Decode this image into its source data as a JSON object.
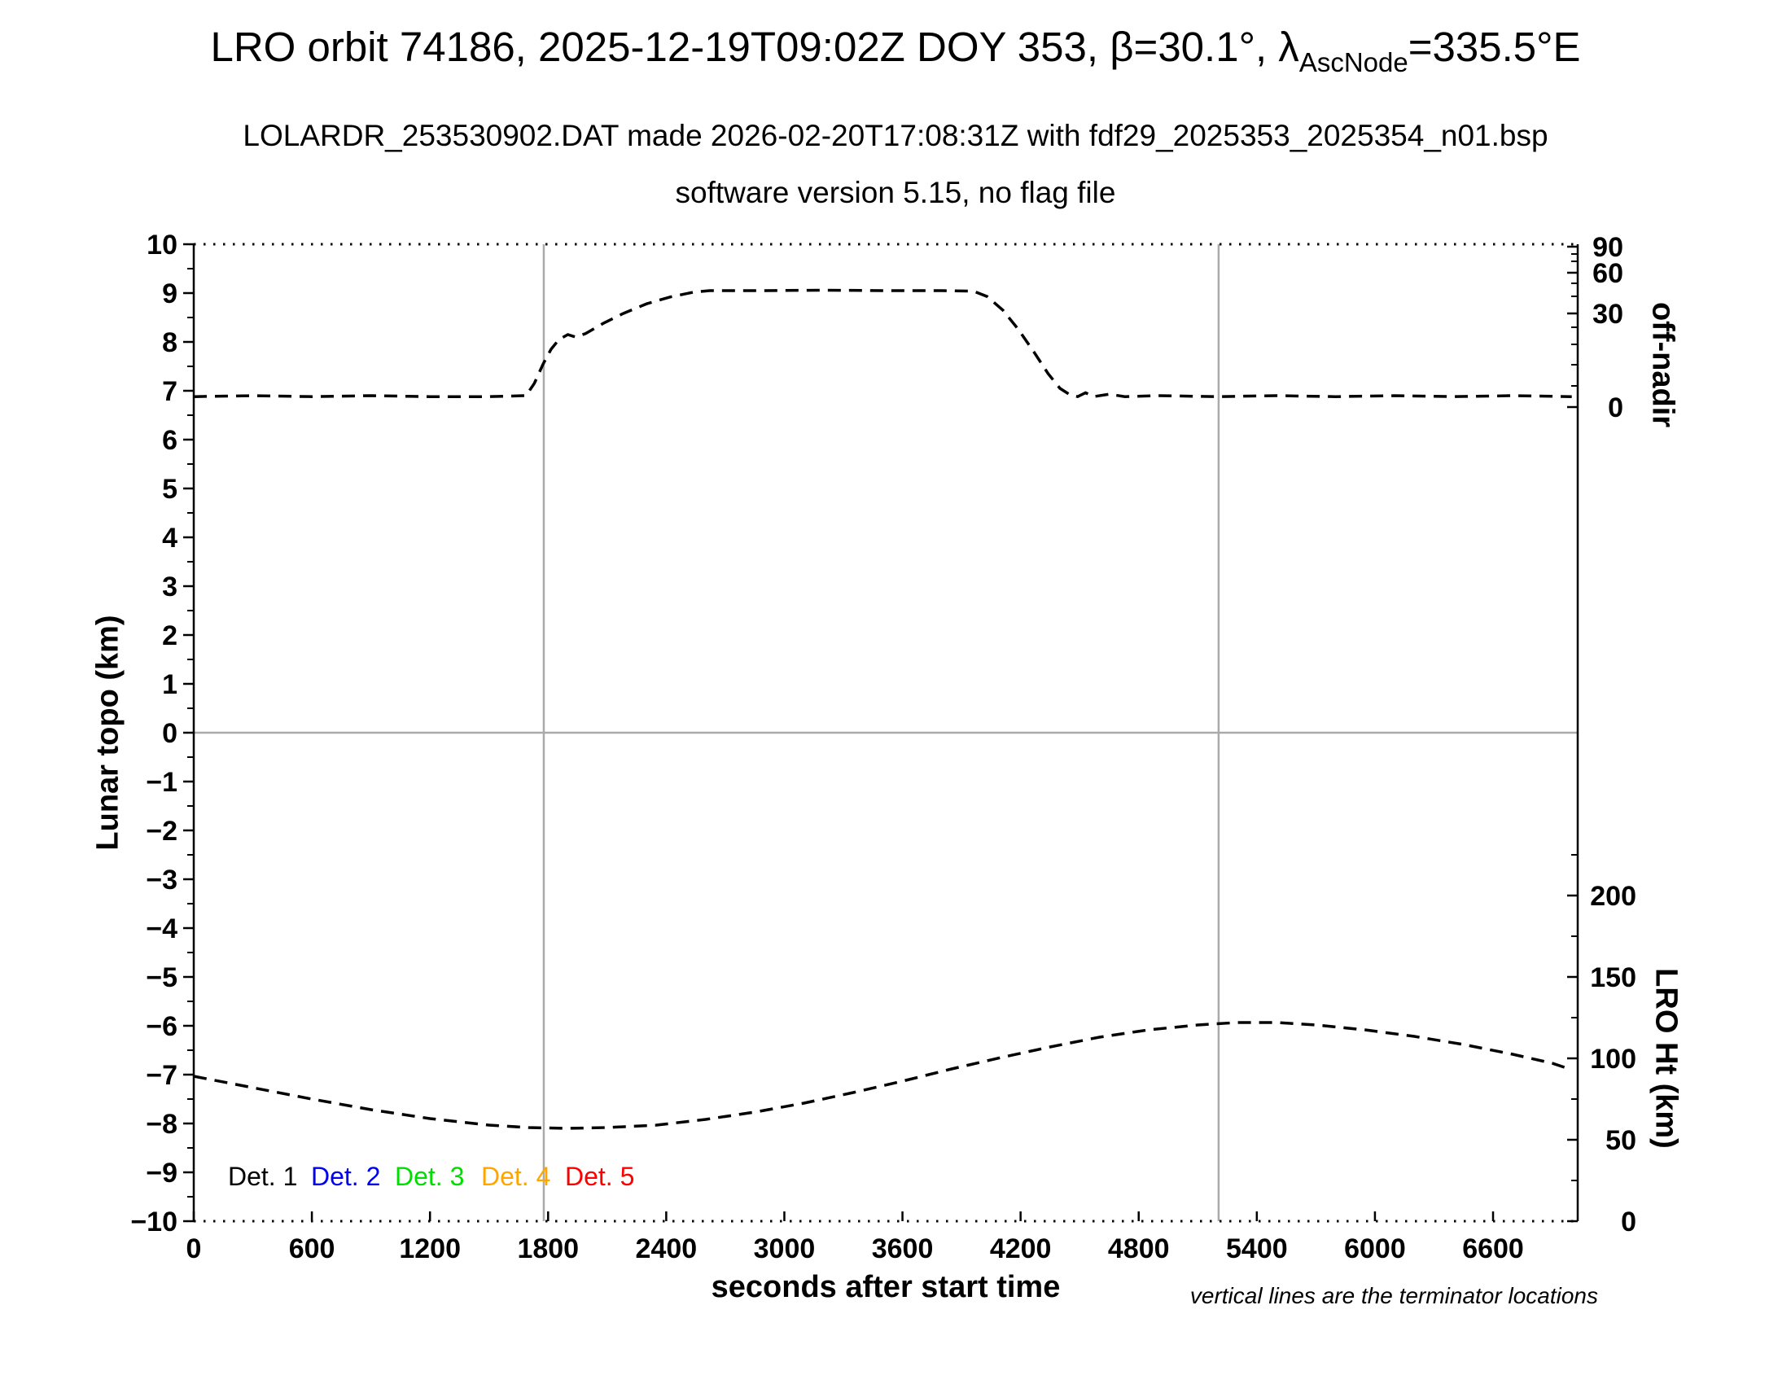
{
  "header": {
    "title_prefix": "LRO orbit 74186, 2025-12-19T09:02Z DOY 353, β=30.1°, λ",
    "title_subscript": "AscNode",
    "title_suffix": "=335.5°E",
    "subtitle1": "LOLARDR_253530902.DAT made 2026-02-20T17:08:31Z with fdf29_2025353_2025354_n01.bsp",
    "subtitle2": "software version 5.15, no flag file"
  },
  "footnote": "vertical lines are the terminator locations",
  "legend": [
    {
      "label": "Det. 1",
      "color": "#000000"
    },
    {
      "label": "Det. 2",
      "color": "#0000ee"
    },
    {
      "label": "Det. 3",
      "color": "#00dd00"
    },
    {
      "label": "Det. 4",
      "color": "#ffa500"
    },
    {
      "label": "Det. 5",
      "color": "#ff0000"
    }
  ],
  "colors": {
    "curve": "#000000",
    "gridline": "#aaaaaa",
    "axis": "#000000"
  },
  "chart_data": {
    "type": "line",
    "title": "LRO orbit 74186, 2025-12-19T09:02Z DOY 353, β=30.1°, λAscNode=335.5°E",
    "xlabel": "seconds after start time",
    "ylabel_left": "Lunar topo (km)",
    "ylabel_right_top": "off-nadir",
    "ylabel_right_bottom": "LRO Ht (km)",
    "xlim": [
      0,
      7030
    ],
    "left_ylim": [
      -10,
      10
    ],
    "x_ticks": [
      0,
      600,
      1200,
      1800,
      2400,
      3000,
      3600,
      4200,
      4800,
      5400,
      6000,
      6600
    ],
    "left_y_ticks": [
      -10,
      -9,
      -8,
      -7,
      -6,
      -5,
      -4,
      -3,
      -2,
      -1,
      0,
      1,
      2,
      3,
      4,
      5,
      6,
      7,
      8,
      9,
      10
    ],
    "offnadir_ticks": [
      90,
      60,
      30,
      0
    ],
    "lro_ht_ticks": [
      200,
      150,
      100,
      50,
      0
    ],
    "lro_ht_lim": [
      0,
      200
    ],
    "zero_line_left": 0,
    "terminator_lines_s": [
      1778,
      5206
    ],
    "grid": "terminator verticals + zero horizontal only",
    "legend_position": "inside bottom-left",
    "series": [
      {
        "name": "off-nadir angle (dashed, read on nonlinear right-top scale; plotted in left-axis units)",
        "style": "dashed",
        "color": "#000000",
        "axis": "left",
        "points": [
          [
            0,
            6.88
          ],
          [
            300,
            6.9
          ],
          [
            600,
            6.88
          ],
          [
            900,
            6.9
          ],
          [
            1200,
            6.88
          ],
          [
            1500,
            6.88
          ],
          [
            1688,
            6.9
          ],
          [
            1730,
            7.15
          ],
          [
            1775,
            7.55
          ],
          [
            1815,
            7.85
          ],
          [
            1855,
            8.05
          ],
          [
            1900,
            8.15
          ],
          [
            1940,
            8.1
          ],
          [
            1990,
            8.17
          ],
          [
            2080,
            8.38
          ],
          [
            2180,
            8.58
          ],
          [
            2300,
            8.78
          ],
          [
            2420,
            8.92
          ],
          [
            2540,
            9.02
          ],
          [
            2620,
            9.05
          ],
          [
            2900,
            9.05
          ],
          [
            3200,
            9.06
          ],
          [
            3500,
            9.05
          ],
          [
            3800,
            9.05
          ],
          [
            3960,
            9.04
          ],
          [
            4030,
            8.93
          ],
          [
            4110,
            8.65
          ],
          [
            4190,
            8.25
          ],
          [
            4270,
            7.78
          ],
          [
            4340,
            7.35
          ],
          [
            4400,
            7.05
          ],
          [
            4450,
            6.92
          ],
          [
            4490,
            6.88
          ],
          [
            4530,
            6.96
          ],
          [
            4570,
            6.88
          ],
          [
            4650,
            6.93
          ],
          [
            4730,
            6.88
          ],
          [
            4900,
            6.9
          ],
          [
            5200,
            6.88
          ],
          [
            5500,
            6.9
          ],
          [
            5800,
            6.88
          ],
          [
            6100,
            6.9
          ],
          [
            6400,
            6.88
          ],
          [
            6700,
            6.9
          ],
          [
            7000,
            6.88
          ]
        ]
      },
      {
        "name": "LRO height",
        "style": "dashed",
        "color": "#000000",
        "axis": "lro_ht_km",
        "points": [
          [
            0,
            89
          ],
          [
            300,
            82
          ],
          [
            600,
            75
          ],
          [
            900,
            68.5
          ],
          [
            1200,
            63
          ],
          [
            1500,
            59
          ],
          [
            1700,
            57.5
          ],
          [
            1900,
            57
          ],
          [
            2100,
            57.5
          ],
          [
            2350,
            59
          ],
          [
            2600,
            62.5
          ],
          [
            2850,
            67
          ],
          [
            3100,
            72.5
          ],
          [
            3350,
            79
          ],
          [
            3600,
            86
          ],
          [
            3850,
            93.5
          ],
          [
            4100,
            100.5
          ],
          [
            4350,
            107
          ],
          [
            4600,
            113
          ],
          [
            4850,
            117.5
          ],
          [
            5100,
            120.5
          ],
          [
            5300,
            122
          ],
          [
            5500,
            122
          ],
          [
            5700,
            120.5
          ],
          [
            5950,
            117.5
          ],
          [
            6200,
            113.5
          ],
          [
            6450,
            108.5
          ],
          [
            6700,
            102.5
          ],
          [
            6900,
            97
          ],
          [
            7000,
            93
          ]
        ]
      }
    ]
  }
}
